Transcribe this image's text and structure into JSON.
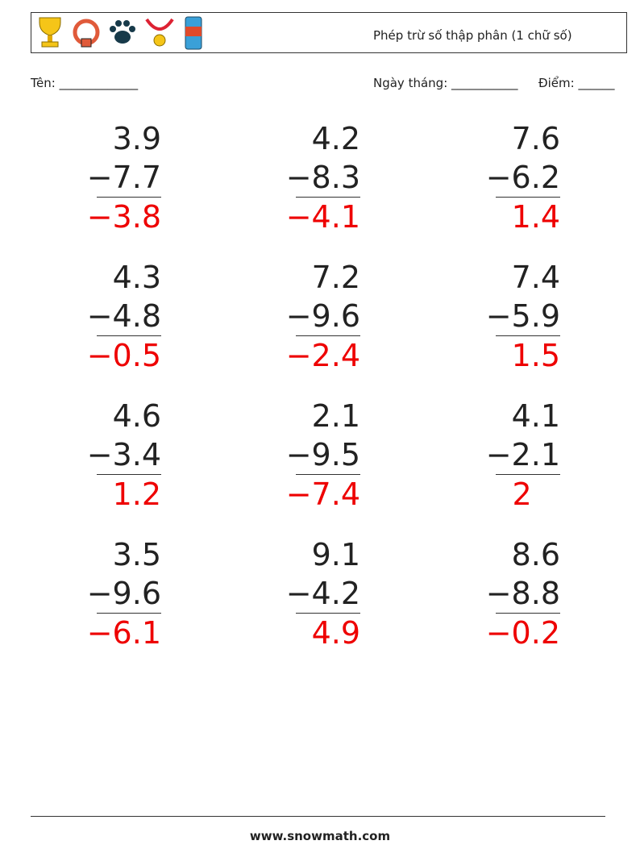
{
  "header": {
    "title": "Phép trừ số thập phân (1 chữ số)"
  },
  "fields": {
    "name": "Tên: _____________",
    "date": "Ngày tháng: ___________",
    "score": "Điểm: ______"
  },
  "problems": [
    {
      "top": "3.9",
      "bottom": "−7.7",
      "answer": "−3.8"
    },
    {
      "top": "4.2",
      "bottom": "−8.3",
      "answer": "−4.1"
    },
    {
      "top": "7.6",
      "bottom": "−6.2",
      "answer": "1.4"
    },
    {
      "top": "4.3",
      "bottom": "−4.8",
      "answer": "−0.5"
    },
    {
      "top": "7.2",
      "bottom": "−9.6",
      "answer": "−2.4"
    },
    {
      "top": "7.4",
      "bottom": "−5.9",
      "answer": "1.5"
    },
    {
      "top": "4.6",
      "bottom": "−3.4",
      "answer": "1.2"
    },
    {
      "top": "2.1",
      "bottom": "−9.5",
      "answer": "−7.4"
    },
    {
      "top": "4.1",
      "bottom": "−2.1",
      "answer": "2"
    },
    {
      "top": "3.5",
      "bottom": "−9.6",
      "answer": "−6.1"
    },
    {
      "top": "9.1",
      "bottom": "−4.2",
      "answer": "4.9"
    },
    {
      "top": "8.6",
      "bottom": "−8.8",
      "answer": "−0.2"
    }
  ],
  "footer": "www.snowmath.com"
}
